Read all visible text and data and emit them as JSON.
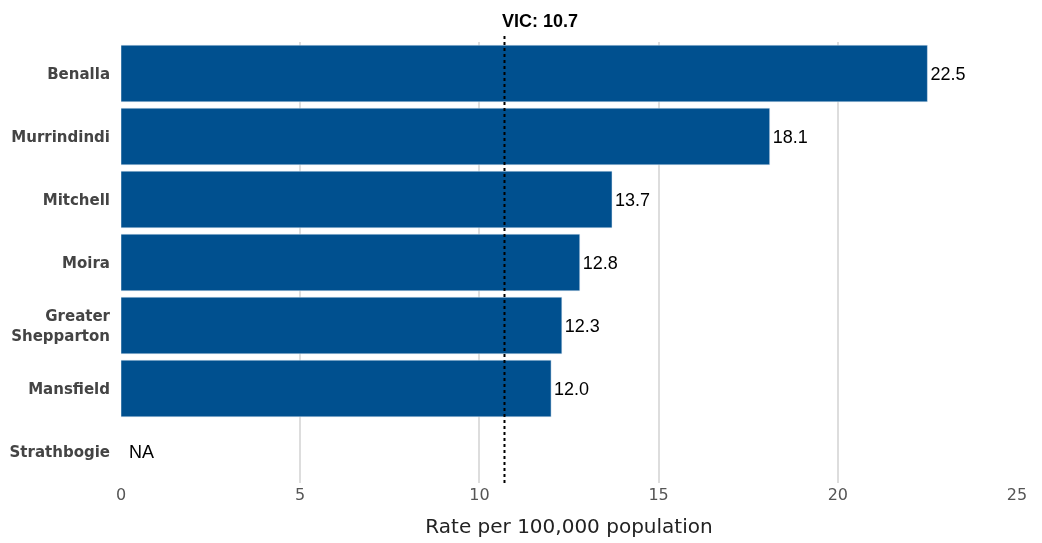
{
  "chart_data": {
    "type": "bar",
    "orientation": "horizontal",
    "categories": [
      "Benalla",
      "Murrindindi",
      "Mitchell",
      "Moira",
      "Greater Shepparton",
      "Mansfield",
      "Strathbogie"
    ],
    "values": [
      22.5,
      18.1,
      13.7,
      12.8,
      12.3,
      12.0,
      null
    ],
    "value_labels": [
      "22.5",
      "18.1",
      "13.7",
      "12.8",
      "12.3",
      "12.0",
      "NA"
    ],
    "color": "#00508f",
    "xlabel": "Rate per 100,000 population",
    "xlim": [
      0,
      25
    ],
    "xticks": [
      0,
      5,
      10,
      15,
      20,
      25
    ],
    "grid": "x",
    "ref_lines": [
      {
        "axis": "x",
        "value": 10.7,
        "label": "VIC: 10.7",
        "color": "#000000",
        "line_style": "dotted"
      }
    ]
  }
}
